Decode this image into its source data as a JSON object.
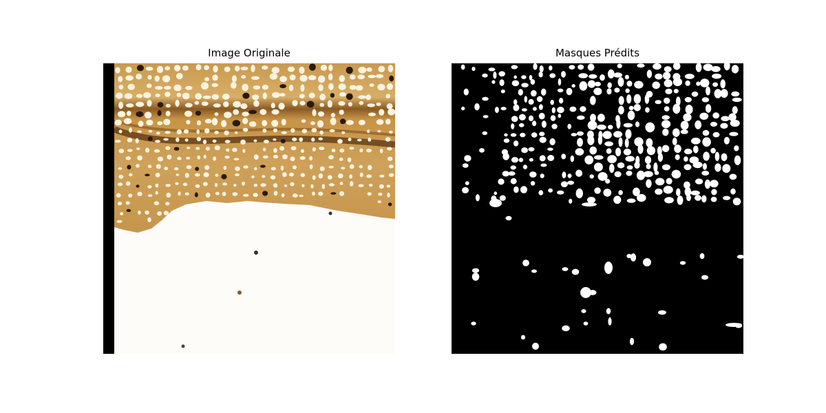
{
  "figure": {
    "left_title": "Image Originale",
    "right_title": "Masques Prédits"
  },
  "colors": {
    "tissue_light": "#d9a95c",
    "tissue_mid": "#b9853e",
    "tissue_dark": "#5a3414",
    "lumen": "#fbf3df",
    "background": "#fdfcf8",
    "mask_fg": "#ffffff",
    "mask_bg": "#000000"
  }
}
